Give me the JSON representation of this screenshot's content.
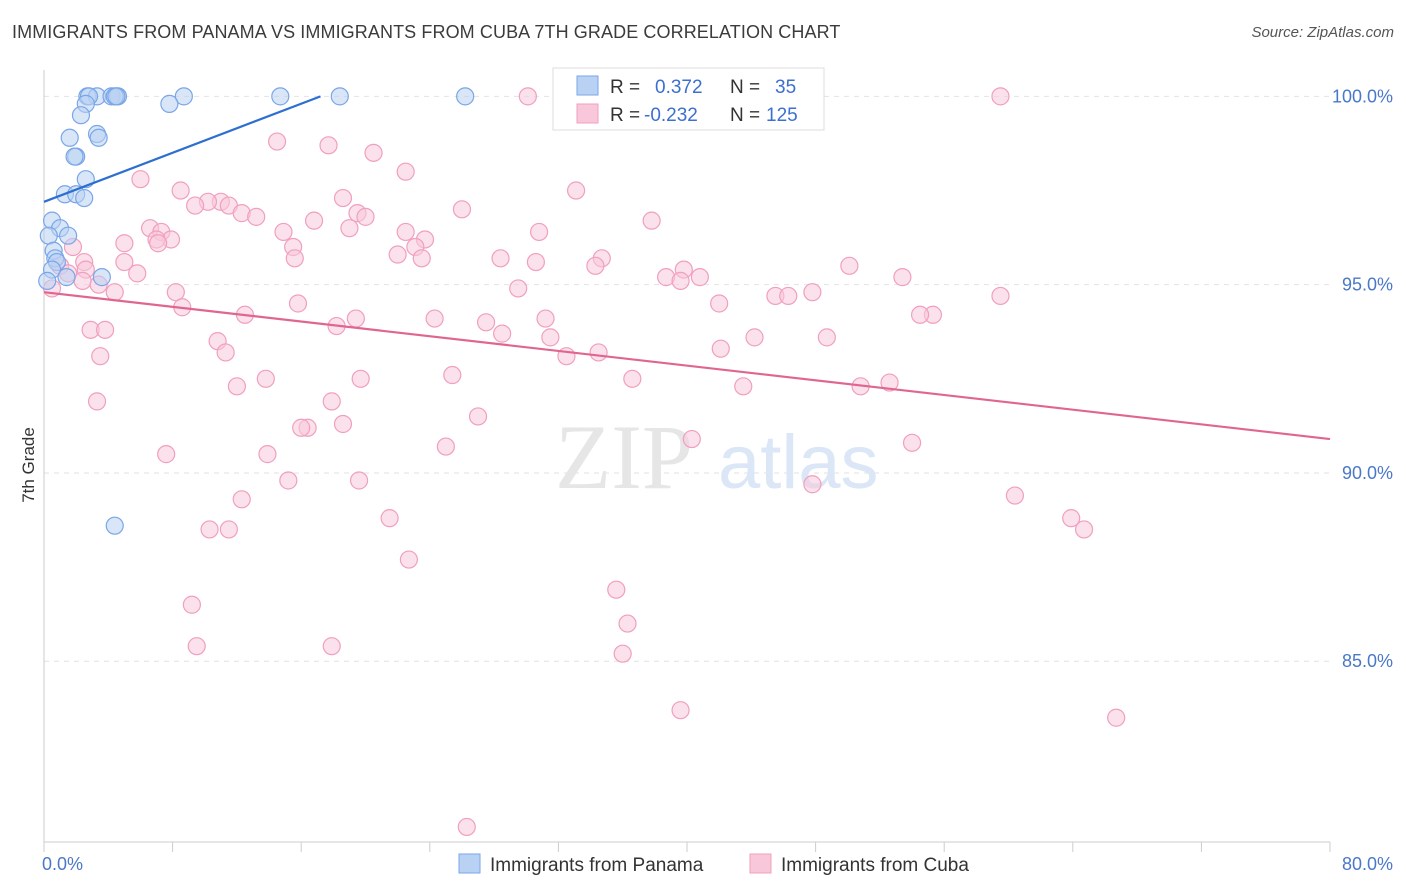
{
  "title": "IMMIGRANTS FROM PANAMA VS IMMIGRANTS FROM CUBA 7TH GRADE CORRELATION CHART",
  "source": "Source: ZipAtlas.com",
  "watermark": {
    "zip": "ZIP",
    "atlas": "atlas"
  },
  "chart_data": {
    "type": "scatter",
    "ylabel": "7th Grade",
    "xlim": [
      0,
      80
    ],
    "ylim": [
      80.2,
      100.7
    ],
    "x_tick_labels": [
      {
        "value": 0,
        "label": "0.0%"
      },
      {
        "value": 80,
        "label": "80.0%"
      }
    ],
    "y_tick_labels": [
      {
        "value": 100,
        "label": "100.0%"
      },
      {
        "value": 95,
        "label": "95.0%"
      },
      {
        "value": 90,
        "label": "90.0%"
      },
      {
        "value": 85,
        "label": "85.0%"
      }
    ],
    "legend": {
      "position": "top-center",
      "rows": [
        {
          "r_label": "R =",
          "r_value": "0.372",
          "n_label": "N =",
          "n_value": "35"
        },
        {
          "r_label": "R =",
          "r_value": "-0.232",
          "n_label": "N =",
          "n_value": "125"
        }
      ]
    },
    "series": [
      {
        "name": "Immigrants from Panama",
        "color": "#7aa6e8",
        "fill": "#b9d1f3",
        "line_color": "#2d6fd0",
        "trend": {
          "x": [
            0,
            17.2
          ],
          "y": [
            97.2,
            100.0
          ]
        },
        "points": [
          [
            2.7,
            100
          ],
          [
            3.3,
            100
          ],
          [
            4.2,
            100
          ],
          [
            4.6,
            100
          ],
          [
            4.4,
            100
          ],
          [
            4.5,
            100
          ],
          [
            2.8,
            100
          ],
          [
            8.7,
            100
          ],
          [
            14.7,
            100
          ],
          [
            18.4,
            100
          ],
          [
            26.2,
            100
          ],
          [
            7.8,
            99.8
          ],
          [
            2.6,
            99.8
          ],
          [
            2.3,
            99.5
          ],
          [
            3.3,
            99.0
          ],
          [
            1.6,
            98.9
          ],
          [
            3.4,
            98.9
          ],
          [
            2.0,
            98.4
          ],
          [
            1.9,
            98.4
          ],
          [
            2.6,
            97.8
          ],
          [
            1.3,
            97.4
          ],
          [
            2.0,
            97.4
          ],
          [
            2.5,
            97.3
          ],
          [
            0.5,
            96.7
          ],
          [
            1.0,
            96.5
          ],
          [
            1.5,
            96.3
          ],
          [
            0.3,
            96.3
          ],
          [
            0.6,
            95.9
          ],
          [
            0.7,
            95.7
          ],
          [
            0.8,
            95.6
          ],
          [
            0.5,
            95.4
          ],
          [
            1.4,
            95.2
          ],
          [
            3.6,
            95.2
          ],
          [
            0.2,
            95.1
          ],
          [
            4.4,
            88.6
          ]
        ]
      },
      {
        "name": "Immigrants from Cuba",
        "color": "#f19fbe",
        "fill": "#f8c8da",
        "line_color": "#e0668f",
        "trend": {
          "x": [
            0,
            80
          ],
          "y": [
            94.8,
            90.9
          ]
        },
        "points": [
          [
            30.1,
            100
          ],
          [
            59.5,
            100
          ],
          [
            14.5,
            98.8
          ],
          [
            17.7,
            98.7
          ],
          [
            20.5,
            98.5
          ],
          [
            22.5,
            98.0
          ],
          [
            6.0,
            97.8
          ],
          [
            8.5,
            97.5
          ],
          [
            33.1,
            97.5
          ],
          [
            18.6,
            97.3
          ],
          [
            11.0,
            97.2
          ],
          [
            10.2,
            97.2
          ],
          [
            9.4,
            97.1
          ],
          [
            11.5,
            97.1
          ],
          [
            26.0,
            97.0
          ],
          [
            19.5,
            96.9
          ],
          [
            12.3,
            96.9
          ],
          [
            20.0,
            96.8
          ],
          [
            13.2,
            96.8
          ],
          [
            16.8,
            96.7
          ],
          [
            37.8,
            96.7
          ],
          [
            6.6,
            96.5
          ],
          [
            19.0,
            96.5
          ],
          [
            14.9,
            96.4
          ],
          [
            22.5,
            96.4
          ],
          [
            7.3,
            96.4
          ],
          [
            30.8,
            96.4
          ],
          [
            23.7,
            96.2
          ],
          [
            7.9,
            96.2
          ],
          [
            7.0,
            96.2
          ],
          [
            5.0,
            96.1
          ],
          [
            7.1,
            96.1
          ],
          [
            15.5,
            96.0
          ],
          [
            1.8,
            96.0
          ],
          [
            23.1,
            96.0
          ],
          [
            22.0,
            95.8
          ],
          [
            28.4,
            95.7
          ],
          [
            34.7,
            95.7
          ],
          [
            15.6,
            95.7
          ],
          [
            23.5,
            95.7
          ],
          [
            30.6,
            95.6
          ],
          [
            5.0,
            95.6
          ],
          [
            2.5,
            95.6
          ],
          [
            1.0,
            95.5
          ],
          [
            34.3,
            95.5
          ],
          [
            50.1,
            95.5
          ],
          [
            39.8,
            95.4
          ],
          [
            2.6,
            95.4
          ],
          [
            1.5,
            95.3
          ],
          [
            5.8,
            95.3
          ],
          [
            38.7,
            95.2
          ],
          [
            40.8,
            95.2
          ],
          [
            39.6,
            95.1
          ],
          [
            53.4,
            95.2
          ],
          [
            2.4,
            95.1
          ],
          [
            3.4,
            95.0
          ],
          [
            0.5,
            94.9
          ],
          [
            29.5,
            94.9
          ],
          [
            4.4,
            94.8
          ],
          [
            8.2,
            94.8
          ],
          [
            47.8,
            94.8
          ],
          [
            59.5,
            94.7
          ],
          [
            45.5,
            94.7
          ],
          [
            46.3,
            94.7
          ],
          [
            15.8,
            94.5
          ],
          [
            42.0,
            94.5
          ],
          [
            8.6,
            94.4
          ],
          [
            12.5,
            94.2
          ],
          [
            55.3,
            94.2
          ],
          [
            54.5,
            94.2
          ],
          [
            19.4,
            94.1
          ],
          [
            24.3,
            94.1
          ],
          [
            31.2,
            94.1
          ],
          [
            27.5,
            94.0
          ],
          [
            18.2,
            93.9
          ],
          [
            2.9,
            93.8
          ],
          [
            3.8,
            93.8
          ],
          [
            28.5,
            93.7
          ],
          [
            31.5,
            93.6
          ],
          [
            44.2,
            93.6
          ],
          [
            48.7,
            93.6
          ],
          [
            10.8,
            93.5
          ],
          [
            42.1,
            93.3
          ],
          [
            11.3,
            93.2
          ],
          [
            34.5,
            93.2
          ],
          [
            3.5,
            93.1
          ],
          [
            32.5,
            93.1
          ],
          [
            25.4,
            92.6
          ],
          [
            19.7,
            92.5
          ],
          [
            13.8,
            92.5
          ],
          [
            12.0,
            92.3
          ],
          [
            36.6,
            92.5
          ],
          [
            43.5,
            92.3
          ],
          [
            50.8,
            92.3
          ],
          [
            52.6,
            92.4
          ],
          [
            3.3,
            91.9
          ],
          [
            17.9,
            91.9
          ],
          [
            27.0,
            91.5
          ],
          [
            16.4,
            91.2
          ],
          [
            18.6,
            91.3
          ],
          [
            16.0,
            91.2
          ],
          [
            40.3,
            90.9
          ],
          [
            25.0,
            90.7
          ],
          [
            54.0,
            90.8
          ],
          [
            7.6,
            90.5
          ],
          [
            13.9,
            90.5
          ],
          [
            15.2,
            89.8
          ],
          [
            19.6,
            89.8
          ],
          [
            47.8,
            89.7
          ],
          [
            60.4,
            89.4
          ],
          [
            12.3,
            89.3
          ],
          [
            21.5,
            88.8
          ],
          [
            10.3,
            88.5
          ],
          [
            11.5,
            88.5
          ],
          [
            63.9,
            88.8
          ],
          [
            64.7,
            88.5
          ],
          [
            22.7,
            87.7
          ],
          [
            35.6,
            86.9
          ],
          [
            9.2,
            86.5
          ],
          [
            36.3,
            86.0
          ],
          [
            9.5,
            85.4
          ],
          [
            17.9,
            85.4
          ],
          [
            36.0,
            85.2
          ],
          [
            39.6,
            83.7
          ],
          [
            66.7,
            83.5
          ],
          [
            26.3,
            80.6
          ]
        ]
      }
    ]
  }
}
